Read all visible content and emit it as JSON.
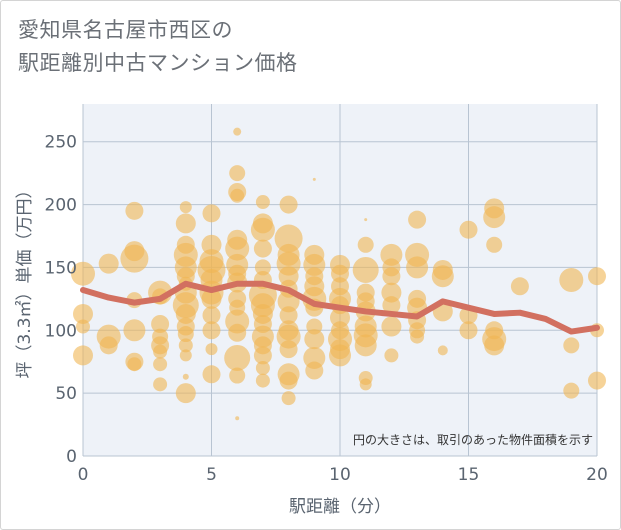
{
  "title_lines": [
    "愛知県名古屋市西区の",
    "駅距離別中古マンション価格"
  ],
  "note": "円の大きさは、取引のあった物件面積を示す",
  "colors": {
    "bubble": "#f0b554",
    "trend": "#d27060",
    "plot_bg": "#eef2f8",
    "grid": "#b8c4d2"
  },
  "chart_data": {
    "type": "scatter",
    "xlabel": "駅距離（分）",
    "ylabel": "坪（3.3㎡）単価（万円）",
    "xlim": [
      0,
      20
    ],
    "ylim": [
      0,
      280
    ],
    "xticks": [
      0,
      5,
      10,
      15,
      20
    ],
    "yticks": [
      0,
      50,
      100,
      150,
      200,
      250
    ],
    "bubbles": [
      {
        "x": 0,
        "y": 145,
        "s": 12
      },
      {
        "x": 0,
        "y": 113,
        "s": 10
      },
      {
        "x": 0,
        "y": 80,
        "s": 10
      },
      {
        "x": 0,
        "y": 103,
        "s": 7
      },
      {
        "x": 1,
        "y": 153,
        "s": 10
      },
      {
        "x": 1,
        "y": 95,
        "s": 12
      },
      {
        "x": 1,
        "y": 88,
        "s": 9
      },
      {
        "x": 2,
        "y": 195,
        "s": 9
      },
      {
        "x": 2,
        "y": 163,
        "s": 10
      },
      {
        "x": 2,
        "y": 157,
        "s": 14
      },
      {
        "x": 2,
        "y": 124,
        "s": 8
      },
      {
        "x": 2,
        "y": 100,
        "s": 11
      },
      {
        "x": 2,
        "y": 75,
        "s": 9
      },
      {
        "x": 2,
        "y": 73,
        "s": 7
      },
      {
        "x": 3,
        "y": 130,
        "s": 12
      },
      {
        "x": 3,
        "y": 127,
        "s": 8
      },
      {
        "x": 3,
        "y": 105,
        "s": 9
      },
      {
        "x": 3,
        "y": 95,
        "s": 8
      },
      {
        "x": 3,
        "y": 88,
        "s": 9
      },
      {
        "x": 3,
        "y": 83,
        "s": 7
      },
      {
        "x": 3,
        "y": 73,
        "s": 7
      },
      {
        "x": 3,
        "y": 57,
        "s": 7
      },
      {
        "x": 4,
        "y": 198,
        "s": 6
      },
      {
        "x": 4,
        "y": 185,
        "s": 10
      },
      {
        "x": 4,
        "y": 168,
        "s": 9
      },
      {
        "x": 4,
        "y": 160,
        "s": 12
      },
      {
        "x": 4,
        "y": 150,
        "s": 11
      },
      {
        "x": 4,
        "y": 143,
        "s": 9
      },
      {
        "x": 4,
        "y": 137,
        "s": 7
      },
      {
        "x": 4,
        "y": 130,
        "s": 11
      },
      {
        "x": 4,
        "y": 120,
        "s": 13
      },
      {
        "x": 4,
        "y": 113,
        "s": 10
      },
      {
        "x": 4,
        "y": 103,
        "s": 9
      },
      {
        "x": 4,
        "y": 97,
        "s": 8
      },
      {
        "x": 4,
        "y": 88,
        "s": 7
      },
      {
        "x": 4,
        "y": 80,
        "s": 6
      },
      {
        "x": 4,
        "y": 50,
        "s": 10
      },
      {
        "x": 4,
        "y": 63,
        "s": 3
      },
      {
        "x": 5,
        "y": 193,
        "s": 9
      },
      {
        "x": 5,
        "y": 168,
        "s": 10
      },
      {
        "x": 5,
        "y": 155,
        "s": 12
      },
      {
        "x": 5,
        "y": 148,
        "s": 14
      },
      {
        "x": 5,
        "y": 140,
        "s": 11
      },
      {
        "x": 5,
        "y": 130,
        "s": 12
      },
      {
        "x": 5,
        "y": 125,
        "s": 10
      },
      {
        "x": 5,
        "y": 112,
        "s": 9
      },
      {
        "x": 5,
        "y": 100,
        "s": 9
      },
      {
        "x": 5,
        "y": 65,
        "s": 9
      },
      {
        "x": 5,
        "y": 85,
        "s": 6
      },
      {
        "x": 6,
        "y": 258,
        "s": 4
      },
      {
        "x": 6,
        "y": 225,
        "s": 8
      },
      {
        "x": 6,
        "y": 210,
        "s": 9
      },
      {
        "x": 6,
        "y": 207,
        "s": 7
      },
      {
        "x": 6,
        "y": 172,
        "s": 10
      },
      {
        "x": 6,
        "y": 165,
        "s": 12
      },
      {
        "x": 6,
        "y": 152,
        "s": 11
      },
      {
        "x": 6,
        "y": 145,
        "s": 9
      },
      {
        "x": 6,
        "y": 138,
        "s": 10
      },
      {
        "x": 6,
        "y": 125,
        "s": 9
      },
      {
        "x": 6,
        "y": 118,
        "s": 8
      },
      {
        "x": 6,
        "y": 107,
        "s": 12
      },
      {
        "x": 6,
        "y": 98,
        "s": 9
      },
      {
        "x": 6,
        "y": 78,
        "s": 13
      },
      {
        "x": 6,
        "y": 64,
        "s": 8
      },
      {
        "x": 6,
        "y": 30,
        "s": 2
      },
      {
        "x": 7,
        "y": 202,
        "s": 7
      },
      {
        "x": 7,
        "y": 185,
        "s": 10
      },
      {
        "x": 7,
        "y": 180,
        "s": 12
      },
      {
        "x": 7,
        "y": 165,
        "s": 9
      },
      {
        "x": 7,
        "y": 150,
        "s": 8
      },
      {
        "x": 7,
        "y": 140,
        "s": 9
      },
      {
        "x": 7,
        "y": 128,
        "s": 14
      },
      {
        "x": 7,
        "y": 120,
        "s": 12
      },
      {
        "x": 7,
        "y": 113,
        "s": 10
      },
      {
        "x": 7,
        "y": 105,
        "s": 9
      },
      {
        "x": 7,
        "y": 95,
        "s": 11
      },
      {
        "x": 7,
        "y": 88,
        "s": 9
      },
      {
        "x": 7,
        "y": 80,
        "s": 9
      },
      {
        "x": 7,
        "y": 70,
        "s": 7
      },
      {
        "x": 7,
        "y": 60,
        "s": 7
      },
      {
        "x": 8,
        "y": 200,
        "s": 9
      },
      {
        "x": 8,
        "y": 173,
        "s": 14
      },
      {
        "x": 8,
        "y": 160,
        "s": 11
      },
      {
        "x": 8,
        "y": 153,
        "s": 12
      },
      {
        "x": 8,
        "y": 143,
        "s": 10
      },
      {
        "x": 8,
        "y": 133,
        "s": 9
      },
      {
        "x": 8,
        "y": 123,
        "s": 11
      },
      {
        "x": 8,
        "y": 112,
        "s": 9
      },
      {
        "x": 8,
        "y": 100,
        "s": 10
      },
      {
        "x": 8,
        "y": 95,
        "s": 12
      },
      {
        "x": 8,
        "y": 85,
        "s": 9
      },
      {
        "x": 8,
        "y": 65,
        "s": 11
      },
      {
        "x": 8,
        "y": 60,
        "s": 9
      },
      {
        "x": 8,
        "y": 46,
        "s": 7
      },
      {
        "x": 9,
        "y": 220,
        "s": 1.5
      },
      {
        "x": 9,
        "y": 160,
        "s": 10
      },
      {
        "x": 9,
        "y": 152,
        "s": 11
      },
      {
        "x": 9,
        "y": 143,
        "s": 9
      },
      {
        "x": 9,
        "y": 135,
        "s": 10
      },
      {
        "x": 9,
        "y": 125,
        "s": 12
      },
      {
        "x": 9,
        "y": 118,
        "s": 9
      },
      {
        "x": 9,
        "y": 103,
        "s": 8
      },
      {
        "x": 9,
        "y": 93,
        "s": 10
      },
      {
        "x": 9,
        "y": 78,
        "s": 11
      },
      {
        "x": 9,
        "y": 68,
        "s": 9
      },
      {
        "x": 10,
        "y": 152,
        "s": 10
      },
      {
        "x": 10,
        "y": 145,
        "s": 9
      },
      {
        "x": 10,
        "y": 135,
        "s": 9
      },
      {
        "x": 10,
        "y": 125,
        "s": 11
      },
      {
        "x": 10,
        "y": 120,
        "s": 9
      },
      {
        "x": 10,
        "y": 110,
        "s": 10
      },
      {
        "x": 10,
        "y": 100,
        "s": 9
      },
      {
        "x": 10,
        "y": 93,
        "s": 12
      },
      {
        "x": 10,
        "y": 85,
        "s": 10
      },
      {
        "x": 10,
        "y": 80,
        "s": 11
      },
      {
        "x": 11,
        "y": 188,
        "s": 1.5
      },
      {
        "x": 11,
        "y": 168,
        "s": 8
      },
      {
        "x": 11,
        "y": 148,
        "s": 13
      },
      {
        "x": 11,
        "y": 130,
        "s": 9
      },
      {
        "x": 11,
        "y": 123,
        "s": 9
      },
      {
        "x": 11,
        "y": 115,
        "s": 10
      },
      {
        "x": 11,
        "y": 103,
        "s": 11
      },
      {
        "x": 11,
        "y": 96,
        "s": 12
      },
      {
        "x": 11,
        "y": 88,
        "s": 11
      },
      {
        "x": 11,
        "y": 62,
        "s": 7
      },
      {
        "x": 11,
        "y": 57,
        "s": 6
      },
      {
        "x": 12,
        "y": 160,
        "s": 11
      },
      {
        "x": 12,
        "y": 150,
        "s": 9
      },
      {
        "x": 12,
        "y": 143,
        "s": 9
      },
      {
        "x": 12,
        "y": 130,
        "s": 10
      },
      {
        "x": 12,
        "y": 120,
        "s": 9
      },
      {
        "x": 12,
        "y": 103,
        "s": 10
      },
      {
        "x": 12,
        "y": 80,
        "s": 7
      },
      {
        "x": 13,
        "y": 188,
        "s": 9
      },
      {
        "x": 13,
        "y": 160,
        "s": 12
      },
      {
        "x": 13,
        "y": 150,
        "s": 11
      },
      {
        "x": 13,
        "y": 125,
        "s": 9
      },
      {
        "x": 13,
        "y": 118,
        "s": 10
      },
      {
        "x": 13,
        "y": 108,
        "s": 9
      },
      {
        "x": 13,
        "y": 100,
        "s": 8
      },
      {
        "x": 13,
        "y": 95,
        "s": 7
      },
      {
        "x": 14,
        "y": 148,
        "s": 10
      },
      {
        "x": 14,
        "y": 143,
        "s": 11
      },
      {
        "x": 14,
        "y": 115,
        "s": 10
      },
      {
        "x": 14,
        "y": 84,
        "s": 5
      },
      {
        "x": 15,
        "y": 180,
        "s": 9
      },
      {
        "x": 15,
        "y": 112,
        "s": 9
      },
      {
        "x": 15,
        "y": 100,
        "s": 9
      },
      {
        "x": 16,
        "y": 197,
        "s": 10
      },
      {
        "x": 16,
        "y": 190,
        "s": 11
      },
      {
        "x": 16,
        "y": 168,
        "s": 8
      },
      {
        "x": 16,
        "y": 100,
        "s": 9
      },
      {
        "x": 16,
        "y": 93,
        "s": 12
      },
      {
        "x": 16,
        "y": 88,
        "s": 10
      },
      {
        "x": 17,
        "y": 135,
        "s": 9
      },
      {
        "x": 19,
        "y": 140,
        "s": 12
      },
      {
        "x": 19,
        "y": 88,
        "s": 8
      },
      {
        "x": 19,
        "y": 52,
        "s": 8
      },
      {
        "x": 20,
        "y": 143,
        "s": 9
      },
      {
        "x": 20,
        "y": 100,
        "s": 7
      },
      {
        "x": 20,
        "y": 60,
        "s": 9
      }
    ],
    "trend": {
      "x": [
        0,
        1,
        2,
        3,
        4,
        5,
        6,
        7,
        8,
        9,
        10,
        11,
        12,
        13,
        14,
        15,
        16,
        17,
        18,
        19,
        20
      ],
      "y": [
        132,
        126,
        122,
        125,
        137,
        132,
        137,
        137,
        132,
        121,
        118,
        115,
        113,
        111,
        123,
        118,
        113,
        114,
        109,
        99,
        102
      ]
    }
  }
}
